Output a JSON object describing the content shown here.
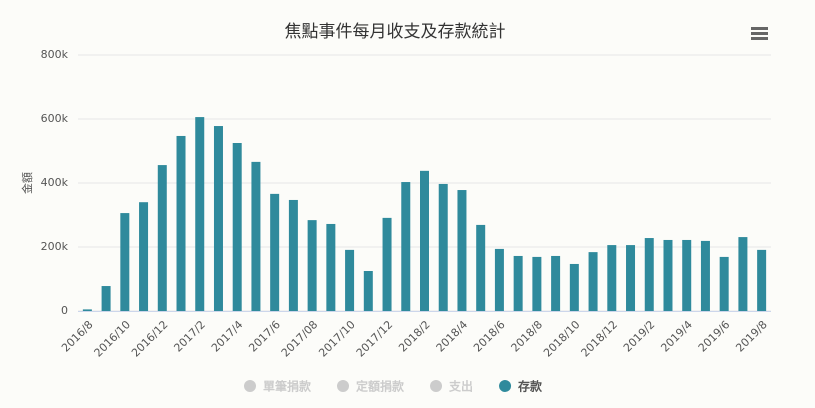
{
  "chart_data": {
    "type": "bar",
    "title": "焦點事件每月收支及存款統計",
    "y_label": "金額",
    "categories": [
      "2016/8",
      null,
      "2016/10",
      null,
      "2016/12",
      null,
      "2017/2",
      null,
      "2017/4",
      null,
      "2017/6",
      null,
      "2017/08",
      null,
      "2017/10",
      null,
      "2017/12",
      null,
      "2018/2",
      null,
      "2018/4",
      null,
      "2018/6",
      null,
      "2018/8",
      null,
      "2018/10",
      null,
      "2018/12",
      null,
      "2019/2",
      null,
      "2019/4",
      null,
      "2019/6",
      null,
      "2019/8"
    ],
    "series": [
      {
        "name": "存款",
        "color": "#2f8a9c",
        "values": [
          5000,
          78000,
          306000,
          340000,
          456000,
          547000,
          606000,
          578000,
          525000,
          466000,
          366000,
          347000,
          284000,
          272000,
          191000,
          125000,
          291000,
          403000,
          438000,
          397000,
          378000,
          269000,
          194000,
          172000,
          169000,
          172000,
          147000,
          184000,
          206000,
          206000,
          228000,
          222000,
          222000,
          219000,
          169000,
          231000,
          191000
        ]
      }
    ],
    "hidden_series": [
      "單筆捐款",
      "定額捐款",
      "支出"
    ],
    "ylim": [
      0,
      800000
    ],
    "yticks": [
      0,
      {
        "value": 200000,
        "label": "200k"
      },
      {
        "value": 400000,
        "label": "400k"
      },
      {
        "value": 600000,
        "label": "600k"
      },
      {
        "value": 800000,
        "label": "800k"
      }
    ],
    "grid": true
  }
}
